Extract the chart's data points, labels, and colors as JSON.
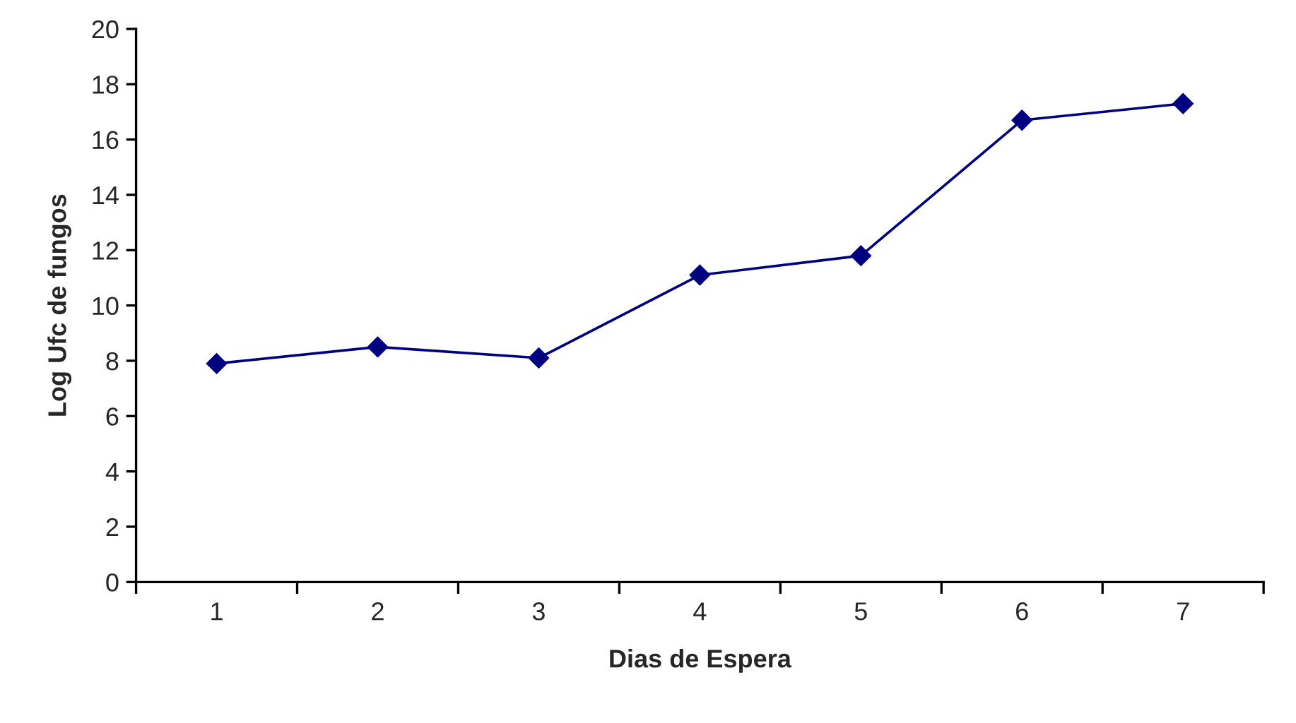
{
  "chart_data": {
    "type": "line",
    "xlabel": "Dias de Espera",
    "ylabel": "Log Ufc de fungos",
    "categories": [
      "1",
      "2",
      "3",
      "4",
      "5",
      "6",
      "7"
    ],
    "series": [
      {
        "color": "#000080",
        "values": [
          7.9,
          8.5,
          8.1,
          11.1,
          11.8,
          16.7,
          17.3
        ]
      }
    ],
    "ylim": [
      0,
      20
    ],
    "yticks": [
      0,
      2,
      4,
      6,
      8,
      10,
      12,
      14,
      16,
      18,
      20
    ],
    "marker": "diamond",
    "line_style": "solid",
    "grid": false,
    "legend": false
  }
}
